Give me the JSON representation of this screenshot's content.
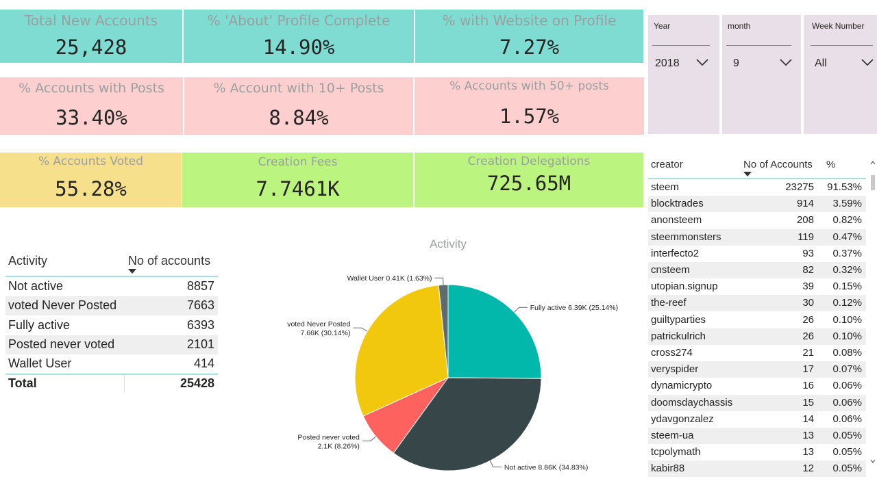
{
  "kpis": {
    "total_new_accounts": {
      "label": "Total New Accounts",
      "value": "25,428"
    },
    "about_profile_complete": {
      "label": "% 'About' Profile Complete",
      "value": "14.90%"
    },
    "website_on_profile": {
      "label": "% with Website on Profile",
      "value": "7.27%"
    },
    "accounts_with_posts": {
      "label": "%  Accounts with Posts",
      "value": "33.40%"
    },
    "accounts_10_posts": {
      "label": "% Account with 10+ Posts",
      "value": "8.84%"
    },
    "accounts_50_posts": {
      "label": "% Accounts with 50+ posts",
      "value": "1.57%"
    },
    "accounts_voted": {
      "label": "% Accounts Voted",
      "value": "55.28%"
    },
    "creation_fees": {
      "label": "Creation Fees",
      "value": "7.7461K"
    },
    "creation_delegations": {
      "label": "Creation Delegations",
      "value": "725.65M"
    }
  },
  "filters": {
    "year": {
      "title": "Year",
      "value": "2018"
    },
    "month": {
      "title": "month",
      "value": "9"
    },
    "week": {
      "title": "Week Number",
      "value": "All"
    }
  },
  "activity_table": {
    "col_activity": "Activity",
    "col_accounts": "No of accounts",
    "rows": [
      {
        "activity": "Not active",
        "count": "8857"
      },
      {
        "activity": "voted Never Posted",
        "count": "7663"
      },
      {
        "activity": "Fully active",
        "count": "6393"
      },
      {
        "activity": "Posted never voted",
        "count": "2101"
      },
      {
        "activity": "Wallet User",
        "count": "414"
      }
    ],
    "total_label": "Total",
    "total_value": "25428"
  },
  "creator_table": {
    "col_creator": "creator",
    "col_accounts": "No of Accounts",
    "col_pct": "%",
    "rows": [
      {
        "creator": "steem",
        "count": "23275",
        "pct": "91.53%"
      },
      {
        "creator": "blocktrades",
        "count": "914",
        "pct": "3.59%"
      },
      {
        "creator": "anonsteem",
        "count": "208",
        "pct": "0.82%"
      },
      {
        "creator": "steemmonsters",
        "count": "119",
        "pct": "0.47%"
      },
      {
        "creator": "interfecto2",
        "count": "93",
        "pct": "0.37%"
      },
      {
        "creator": "cnsteem",
        "count": "82",
        "pct": "0.32%"
      },
      {
        "creator": "utopian.signup",
        "count": "39",
        "pct": "0.15%"
      },
      {
        "creator": "the-reef",
        "count": "30",
        "pct": "0.12%"
      },
      {
        "creator": "guiltyparties",
        "count": "26",
        "pct": "0.10%"
      },
      {
        "creator": "patrickulrich",
        "count": "26",
        "pct": "0.10%"
      },
      {
        "creator": "cross274",
        "count": "21",
        "pct": "0.08%"
      },
      {
        "creator": "veryspider",
        "count": "17",
        "pct": "0.07%"
      },
      {
        "creator": "dynamicrypto",
        "count": "16",
        "pct": "0.06%"
      },
      {
        "creator": "doomsdaychassis",
        "count": "15",
        "pct": "0.06%"
      },
      {
        "creator": "ydavgonzalez",
        "count": "14",
        "pct": "0.06%"
      },
      {
        "creator": "steem-ua",
        "count": "13",
        "pct": "0.05%"
      },
      {
        "creator": "tcpolymath",
        "count": "13",
        "pct": "0.05%"
      },
      {
        "creator": "kabir88",
        "count": "12",
        "pct": "0.05%"
      }
    ]
  },
  "chart_data": {
    "type": "pie",
    "title": "Activity",
    "slices": [
      {
        "name": "Fully active",
        "value": 6393,
        "label": "Fully active 6.39K (25.14%)",
        "color": "#01b8aa"
      },
      {
        "name": "Not active",
        "value": 8857,
        "label": "Not active 8.86K (34.83%)",
        "color": "#374649"
      },
      {
        "name": "Posted never voted",
        "value": 2101,
        "label": "2.1K (8.26%)",
        "label_top": "Posted never voted",
        "color": "#fd625e"
      },
      {
        "name": "voted Never Posted",
        "value": 7663,
        "label": "7.66K (30.14%)",
        "label_top": "voted Never Posted",
        "color": "#f2c80f"
      },
      {
        "name": "Wallet User",
        "value": 414,
        "label": "Wallet User 0.41K (1.63%)",
        "color": "#5f6b6d"
      }
    ]
  }
}
